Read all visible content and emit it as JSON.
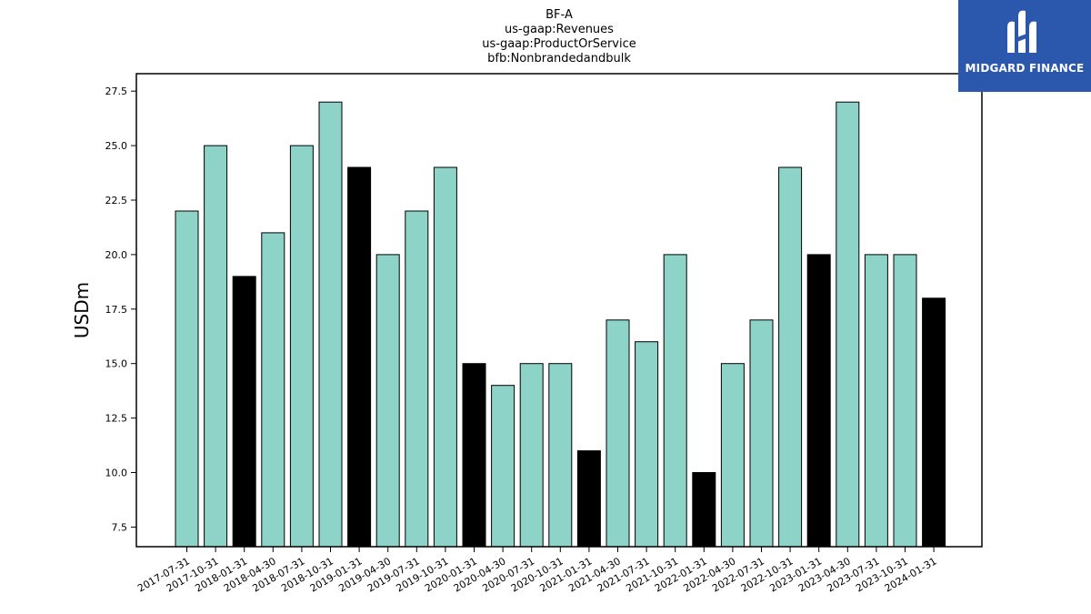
{
  "chart_data": {
    "type": "bar",
    "title_lines": [
      "BF-A",
      "us-gaap:Revenues",
      "us-gaap:ProductOrService",
      "bfb:Nonbrandedandbulk"
    ],
    "xlabel": "",
    "ylabel": "USDm",
    "ylim": [
      6.6,
      28.3
    ],
    "yticks": [
      "7.5",
      "10.0",
      "12.5",
      "15.0",
      "17.5",
      "20.0",
      "22.5",
      "25.0",
      "27.5"
    ],
    "grid": false,
    "categories": [
      "2017-07-31",
      "2017-10-31",
      "2018-01-31",
      "2018-04-30",
      "2018-07-31",
      "2018-10-31",
      "2019-01-31",
      "2019-04-30",
      "2019-07-31",
      "2019-10-31",
      "2020-01-31",
      "2020-04-30",
      "2020-07-31",
      "2020-10-31",
      "2021-01-31",
      "2021-04-30",
      "2021-07-31",
      "2021-10-31",
      "2022-01-31",
      "2022-04-30",
      "2022-07-31",
      "2022-10-31",
      "2023-01-31",
      "2023-04-30",
      "2023-07-31",
      "2023-10-31",
      "2024-01-31"
    ],
    "values": [
      22,
      25,
      19,
      21,
      25,
      27,
      24,
      20,
      22,
      24,
      15,
      14,
      15,
      15,
      11,
      17,
      16,
      20,
      10,
      15,
      17,
      24,
      20,
      27,
      20,
      20,
      18
    ],
    "highlight_indices": [
      2,
      6,
      10,
      14,
      18,
      22,
      26
    ],
    "colors": {
      "bar": "#8dd3c7",
      "highlight": "#000000",
      "edge": "#000000"
    }
  },
  "logo": {
    "text": "MIDGARD FINANCE",
    "icon": "midgard-logo-icon",
    "background": "#2b58ac"
  }
}
